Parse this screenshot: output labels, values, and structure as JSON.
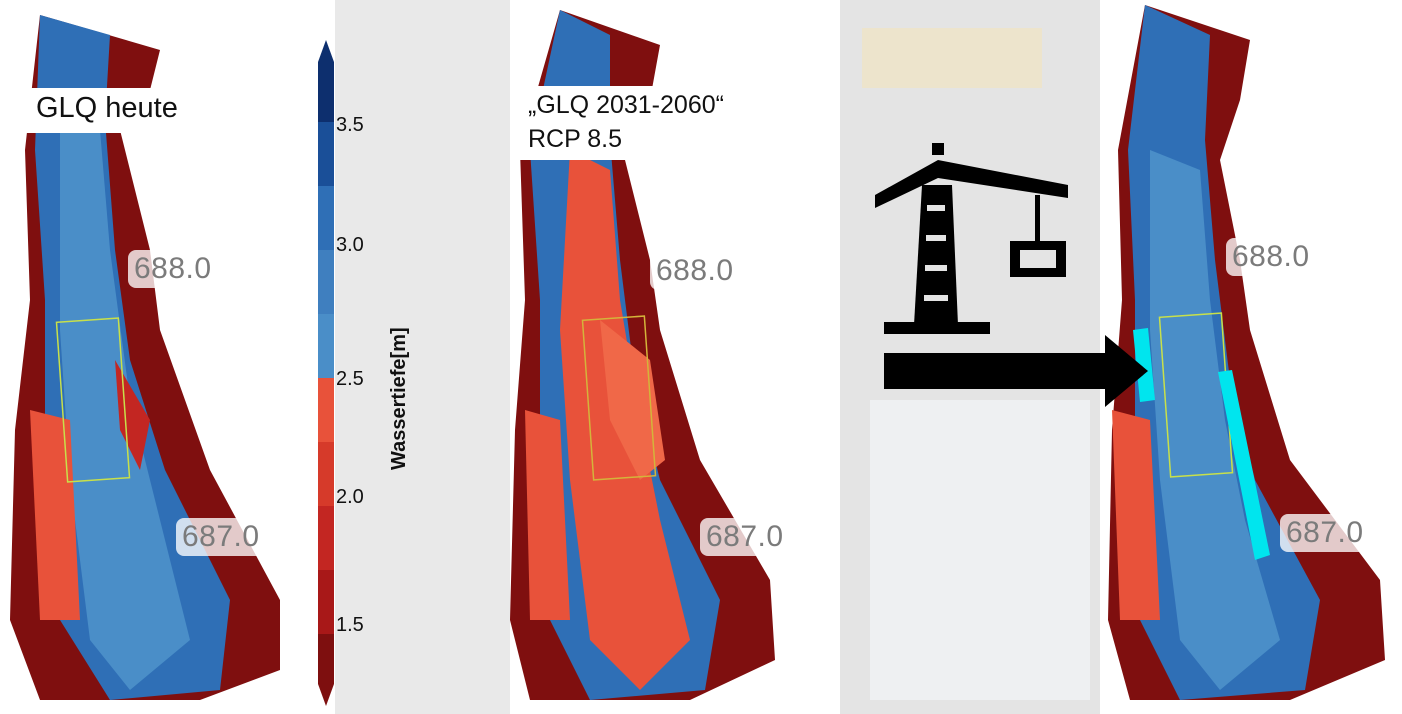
{
  "panels": [
    {
      "title_lines": [
        "GLQ heute"
      ],
      "km_labels": [
        "688.0",
        "687.0"
      ]
    },
    {
      "title_lines": [
        "„GLQ 2031-2060“",
        "RCP 8.5"
      ],
      "km_labels": [
        "688.0",
        "687.0"
      ]
    },
    {
      "title_lines": [],
      "km_labels": [
        "688.0",
        "687.0"
      ]
    }
  ],
  "colorbar": {
    "label": "Wassertiefe[m]",
    "ticks": [
      "3.5",
      "3.0",
      "2.5",
      "2.0",
      "1.5"
    ],
    "colors": [
      "#0d2f6e",
      "#1a4f98",
      "#2f6fb6",
      "#4a8ec8",
      "#e8523a",
      "#c32622",
      "#7e0f0f"
    ]
  },
  "icon": {
    "name": "crane-icon",
    "color": "#000000"
  },
  "arrow": {
    "name": "right-arrow-icon",
    "color": "#000000"
  },
  "highlight_color": "#00e5ee"
}
